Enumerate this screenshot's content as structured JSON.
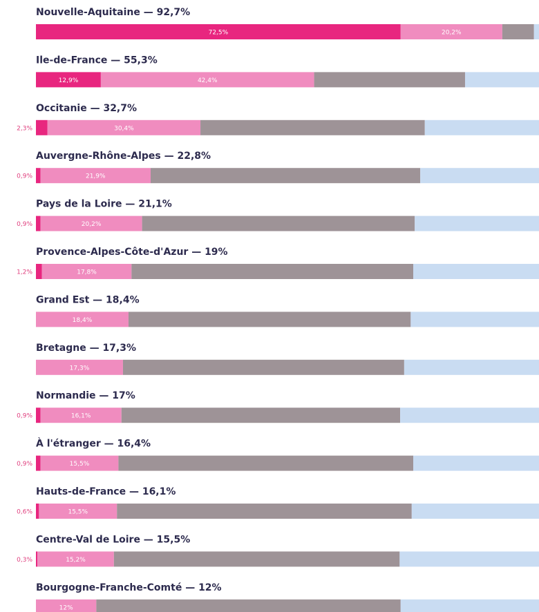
{
  "chart_data": {
    "type": "stacked_bar",
    "categories": [
      "Nouvelle-Aquitaine — 92,7%",
      "Ile-de-France — 55,3%",
      "Occitanie — 32,7%",
      "Auvergne-Rhône-Alpes — 22,8%",
      "Pays de la Loire — 21,1%",
      "Provence-Alpes-Côte-d'Azur — 19%",
      "Grand Est — 18,4%",
      "Bretagne — 17,3%",
      "Normandie — 17%",
      "À l'étranger — 16,4%",
      "Hauts-de-France — 16,1%",
      "Centre-Val de Loire — 15,5%",
      "Bourgogne-Franche-Comté — 12%"
    ],
    "xlim": [
      0,
      100
    ],
    "series": [
      {
        "color": "#e8267f",
        "values": [
          72.5,
          12.9,
          2.3,
          0.9,
          0.9,
          1.2,
          null,
          null,
          0.9,
          0.9,
          0.6,
          0.3,
          null
        ],
        "value_labels": [
          "72,5%",
          "12,9%",
          "2,3%",
          "0,9%",
          "0,9%",
          "1,2%",
          null,
          null,
          "0,9%",
          "0,9%",
          "0,6%",
          "0,3%",
          null
        ]
      },
      {
        "color": "#f08cbf",
        "values": [
          20.2,
          42.4,
          30.4,
          21.9,
          20.2,
          17.8,
          18.4,
          17.3,
          16.1,
          15.5,
          15.5,
          15.2,
          12
        ],
        "value_labels": [
          "20,2%",
          "42,4%",
          "30,4%",
          "21,9%",
          "20,2%",
          "17,8%",
          "18,4%",
          "17,3%",
          "16,1%",
          "15,5%",
          "15,5%",
          "15,2%",
          "12%"
        ]
      },
      {
        "color": "#9e9397",
        "values": [
          6.3,
          30.0,
          44.6,
          53.6,
          54.2,
          56.0,
          56.1,
          55.9,
          55.4,
          58.6,
          58.6,
          56.8,
          60.5
        ]
      },
      {
        "color": "#c9dcf2",
        "values": [
          1.0,
          14.7,
          22.7,
          23.6,
          24.7,
          25.0,
          25.5,
          26.8,
          27.6,
          25.0,
          25.3,
          27.7,
          27.5
        ]
      }
    ]
  }
}
